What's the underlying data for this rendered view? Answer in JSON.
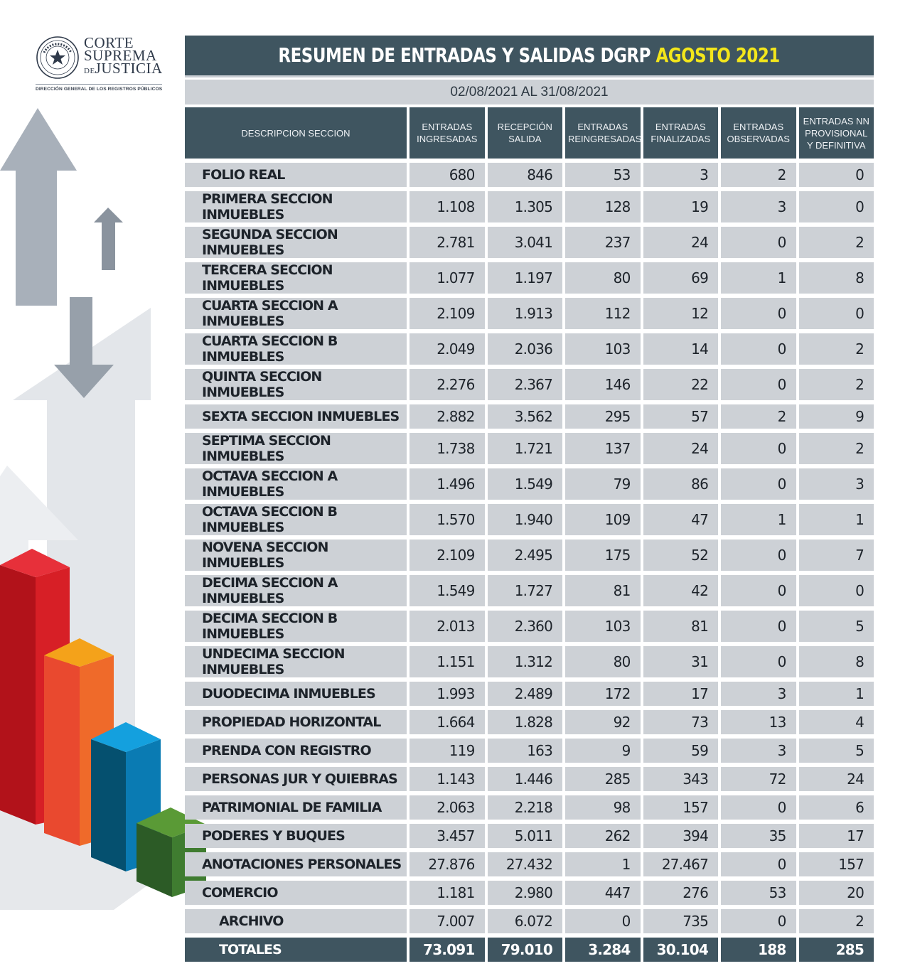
{
  "header": {
    "org_line1": "CORTE",
    "org_line2": "SUPREMA",
    "org_line3_prefix": "DE",
    "org_line3": "JUSTICIA",
    "department": "DIRECCIÓN GENERAL DE LOS REGISTROS PÚBLICOS"
  },
  "icons": {
    "seal": "court-seal-icon"
  },
  "title": {
    "main": "RESUMEN DE ENTRADAS Y SALIDAS DGRP",
    "highlight": "AGOSTO 2021"
  },
  "period": "02/08/2021 AL 31/08/2021",
  "colors": {
    "header_bg": "#3f5560",
    "cell_bg": "#cdd1d6",
    "highlight": "#f3e61b"
  },
  "columns": [
    "DESCRIPCION SECCION",
    "ENTRADAS INGRESADAS",
    "RECEPCIÓN SALIDA",
    "ENTRADAS REINGRESADAS",
    "ENTRADAS FINALIZADAS",
    "ENTRADAS OBSERVADAS",
    "ENTRADAS NN PROVISIONAL Y DEFINITIVA"
  ],
  "rows": [
    [
      "FOLIO REAL",
      "680",
      "846",
      "53",
      "3",
      "2",
      "0"
    ],
    [
      "PRIMERA SECCION INMUEBLES",
      "1.108",
      "1.305",
      "128",
      "19",
      "3",
      "0"
    ],
    [
      "SEGUNDA SECCION INMUEBLES",
      "2.781",
      "3.041",
      "237",
      "24",
      "0",
      "2"
    ],
    [
      "TERCERA SECCION INMUEBLES",
      "1.077",
      "1.197",
      "80",
      "69",
      "1",
      "8"
    ],
    [
      "CUARTA SECCION A INMUEBLES",
      "2.109",
      "1.913",
      "112",
      "12",
      "0",
      "0"
    ],
    [
      "CUARTA SECCION B INMUEBLES",
      "2.049",
      "2.036",
      "103",
      "14",
      "0",
      "2"
    ],
    [
      "QUINTA SECCION INMUEBLES",
      "2.276",
      "2.367",
      "146",
      "22",
      "0",
      "2"
    ],
    [
      "SEXTA SECCION INMUEBLES",
      "2.882",
      "3.562",
      "295",
      "57",
      "2",
      "9"
    ],
    [
      "SEPTIMA SECCION INMUEBLES",
      "1.738",
      "1.721",
      "137",
      "24",
      "0",
      "2"
    ],
    [
      "OCTAVA SECCION A INMUEBLES",
      "1.496",
      "1.549",
      "79",
      "86",
      "0",
      "3"
    ],
    [
      "OCTAVA SECCION B INMUEBLES",
      "1.570",
      "1.940",
      "109",
      "47",
      "1",
      "1"
    ],
    [
      "NOVENA SECCION INMUEBLES",
      "2.109",
      "2.495",
      "175",
      "52",
      "0",
      "7"
    ],
    [
      "DECIMA SECCION A INMUEBLES",
      "1.549",
      "1.727",
      "81",
      "42",
      "0",
      "0"
    ],
    [
      "DECIMA SECCION B INMUEBLES",
      "2.013",
      "2.360",
      "103",
      "81",
      "0",
      "5"
    ],
    [
      "UNDECIMA SECCION INMUEBLES",
      "1.151",
      "1.312",
      "80",
      "31",
      "0",
      "8"
    ],
    [
      "DUODECIMA INMUEBLES",
      "1.993",
      "2.489",
      "172",
      "17",
      "3",
      "1"
    ],
    [
      "PROPIEDAD HORIZONTAL",
      "1.664",
      "1.828",
      "92",
      "73",
      "13",
      "4"
    ],
    [
      "PRENDA CON REGISTRO",
      "119",
      "163",
      "9",
      "59",
      "3",
      "5"
    ],
    [
      "PERSONAS JUR Y QUIEBRAS",
      "1.143",
      "1.446",
      "285",
      "343",
      "72",
      "24"
    ],
    [
      "PATRIMONIAL DE FAMILIA",
      "2.063",
      "2.218",
      "98",
      "157",
      "0",
      "6"
    ],
    [
      "PODERES Y BUQUES",
      "3.457",
      "5.011",
      "262",
      "394",
      "35",
      "17"
    ],
    [
      "ANOTACIONES PERSONALES",
      "27.876",
      "27.432",
      "1",
      "27.467",
      "0",
      "157"
    ],
    [
      "COMERCIO",
      "1.181",
      "2.980",
      "447",
      "276",
      "53",
      "20"
    ],
    [
      "ARCHIVO",
      "7.007",
      "6.072",
      "0",
      "735",
      "0",
      "2"
    ]
  ],
  "totals": [
    "TOTALES",
    "73.091",
    "79.010",
    "3.284",
    "30.104",
    "188",
    "285"
  ]
}
